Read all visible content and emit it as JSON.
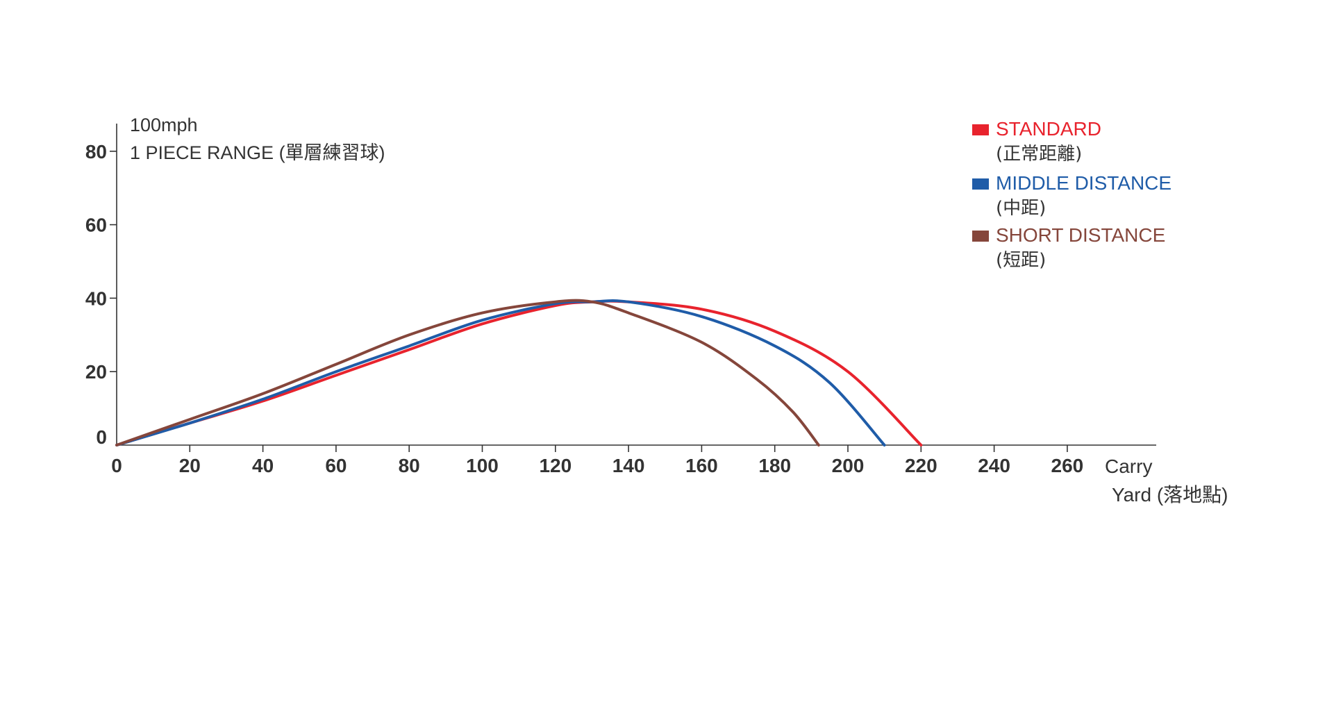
{
  "chart_data": {
    "type": "line",
    "annotations": [
      "100mph",
      "1 PIECE RANGE (單層練習球)"
    ],
    "xlabel_lines": [
      "Carry",
      "Yard (落地點)"
    ],
    "xlim": [
      0,
      260
    ],
    "ylim": [
      0,
      80
    ],
    "x_ticks": [
      0,
      20,
      40,
      60,
      80,
      100,
      120,
      140,
      160,
      180,
      200,
      220,
      240,
      260
    ],
    "y_ticks": [
      0,
      20,
      40,
      60,
      80
    ],
    "grid": false,
    "legend_position": "top-right",
    "series": [
      {
        "name": "STANDARD",
        "subtitle": "(正常距離)",
        "color": "#e8232d",
        "points": [
          [
            0,
            0
          ],
          [
            20,
            6
          ],
          [
            40,
            12
          ],
          [
            60,
            19
          ],
          [
            80,
            26
          ],
          [
            100,
            33
          ],
          [
            120,
            38
          ],
          [
            130,
            39
          ],
          [
            140,
            39
          ],
          [
            160,
            37
          ],
          [
            180,
            31
          ],
          [
            200,
            20
          ],
          [
            220,
            0
          ]
        ]
      },
      {
        "name": "MIDDLE DISTANCE",
        "subtitle": "(中距)",
        "color": "#1f5ca8",
        "points": [
          [
            0,
            0
          ],
          [
            20,
            6
          ],
          [
            40,
            12.5
          ],
          [
            60,
            20
          ],
          [
            80,
            27
          ],
          [
            100,
            34
          ],
          [
            120,
            38.5
          ],
          [
            130,
            39
          ],
          [
            140,
            39
          ],
          [
            160,
            35
          ],
          [
            180,
            27
          ],
          [
            195,
            17
          ],
          [
            210,
            0
          ]
        ]
      },
      {
        "name": "SHORT DISTANCE",
        "subtitle": "(短距)",
        "color": "#85463b",
        "points": [
          [
            0,
            0
          ],
          [
            20,
            7
          ],
          [
            40,
            14
          ],
          [
            60,
            22
          ],
          [
            80,
            30
          ],
          [
            100,
            36
          ],
          [
            120,
            39
          ],
          [
            130,
            39
          ],
          [
            140,
            36
          ],
          [
            160,
            28
          ],
          [
            175,
            18
          ],
          [
            185,
            9
          ],
          [
            192,
            0
          ]
        ]
      }
    ]
  }
}
